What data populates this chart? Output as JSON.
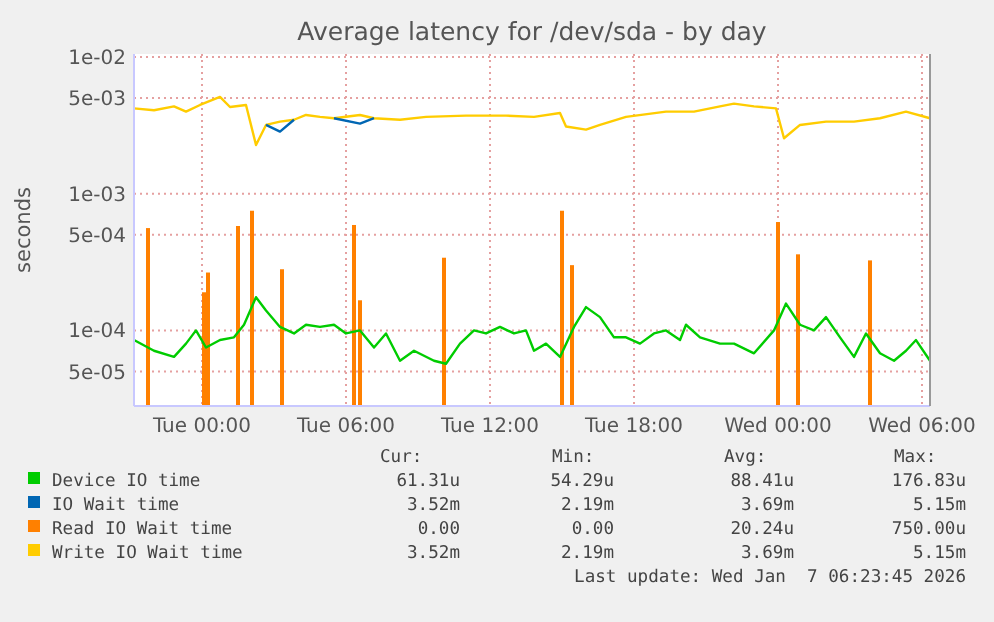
{
  "chart_data": {
    "type": "line",
    "title": "Average latency for /dev/sda - by day",
    "ylabel": "seconds",
    "log": "y",
    "grid": true,
    "legend": "bottom",
    "xlim": [
      "2026-01-05T21:10",
      "2026-01-07T06:20"
    ],
    "xticks": [
      {
        "value": "2026-01-06T00:00",
        "label": "Tue 00:00"
      },
      {
        "value": "2026-01-06T06:00",
        "label": "Tue 06:00"
      },
      {
        "value": "2026-01-06T12:00",
        "label": "Tue 12:00"
      },
      {
        "value": "2026-01-06T18:00",
        "label": "Tue 18:00"
      },
      {
        "value": "2026-01-07T00:00",
        "label": "Wed 00:00"
      },
      {
        "value": "2026-01-07T06:00",
        "label": "Wed 06:00"
      }
    ],
    "ylim": [
      2.8e-05,
      0.0105
    ],
    "yticks": [
      {
        "value": 5e-05,
        "label": "5e-05"
      },
      {
        "value": 0.0001,
        "label": "1e-04"
      },
      {
        "value": 0.0005,
        "label": "5e-04"
      },
      {
        "value": 0.001,
        "label": "1e-03"
      },
      {
        "value": 0.005,
        "label": "5e-03"
      },
      {
        "value": 0.01,
        "label": "1e-02"
      }
    ],
    "series": [
      {
        "name": "Device IO time",
        "color": "#00cc00",
        "x": [
          "2026-01-05T21:10",
          "2026-01-05T22:00",
          "2026-01-05T22:50",
          "2026-01-05T23:20",
          "2026-01-05T23:45",
          "2026-01-06T00:10",
          "2026-01-06T00:45",
          "2026-01-06T01:20",
          "2026-01-06T01:45",
          "2026-01-06T02:15",
          "2026-01-06T02:40",
          "2026-01-06T03:15",
          "2026-01-06T03:50",
          "2026-01-06T04:20",
          "2026-01-06T04:55",
          "2026-01-06T05:30",
          "2026-01-06T06:00",
          "2026-01-06T06:35",
          "2026-01-06T07:10",
          "2026-01-06T07:40",
          "2026-01-06T08:15",
          "2026-01-06T08:50",
          "2026-01-06T09:40",
          "2026-01-06T10:10",
          "2026-01-06T10:45",
          "2026-01-06T11:20",
          "2026-01-06T11:50",
          "2026-01-06T12:25",
          "2026-01-06T13:00",
          "2026-01-06T13:30",
          "2026-01-06T13:50",
          "2026-01-06T14:20",
          "2026-01-06T14:55",
          "2026-01-06T15:30",
          "2026-01-06T16:00",
          "2026-01-06T16:35",
          "2026-01-06T17:10",
          "2026-01-06T17:40",
          "2026-01-06T18:15",
          "2026-01-06T18:50",
          "2026-01-06T19:20",
          "2026-01-06T19:55",
          "2026-01-06T20:10",
          "2026-01-06T20:45",
          "2026-01-06T21:35",
          "2026-01-06T22:10",
          "2026-01-06T23:00",
          "2026-01-06T23:50",
          "2026-01-07T00:20",
          "2026-01-07T00:55",
          "2026-01-07T01:30",
          "2026-01-07T02:00",
          "2026-01-07T02:35",
          "2026-01-07T03:10",
          "2026-01-07T03:40",
          "2026-01-07T04:15",
          "2026-01-07T04:50",
          "2026-01-07T05:20",
          "2026-01-07T05:45",
          "2026-01-07T06:20"
        ],
        "values": [
          8.5e-05,
          7.1e-05,
          6.4e-05,
          8e-05,
          0.0001,
          7.5e-05,
          8.5e-05,
          8.9e-05,
          0.00011,
          0.000175,
          0.00014,
          0.000106,
          9.5e-05,
          0.00011,
          0.000106,
          0.00011,
          9.5e-05,
          0.0001,
          7.5e-05,
          9.5e-05,
          6e-05,
          7.1e-05,
          6e-05,
          5.7e-05,
          8e-05,
          0.0001,
          9.5e-05,
          0.000106,
          9.5e-05,
          0.0001,
          7.1e-05,
          8e-05,
          6.4e-05,
          0.000106,
          0.000148,
          0.000125,
          8.9e-05,
          8.9e-05,
          8e-05,
          9.5e-05,
          0.0001,
          8.5e-05,
          0.00011,
          8.9e-05,
          8e-05,
          8e-05,
          6.8e-05,
          0.0001,
          0.000157,
          0.00011,
          0.0001,
          0.000125,
          8.9e-05,
          6.4e-05,
          9.5e-05,
          6.8e-05,
          6e-05,
          7.1e-05,
          8.5e-05,
          6e-05
        ]
      },
      {
        "name": "IO Wait time",
        "color": "#0066b3",
        "x": [
          "2026-01-06T02:40",
          "2026-01-06T03:15",
          "2026-01-06T03:50",
          "2026-01-06T04:20",
          "2026-01-06T05:30",
          "2026-01-06T06:35",
          "2026-01-06T07:10"
        ],
        "values": [
          0.00318,
          0.00284,
          0.00347,
          null,
          0.00356,
          0.00325,
          0.00356
        ]
      },
      {
        "name": "Read IO Wait time",
        "color": "#ff8000",
        "type": "bar",
        "x": [
          "2026-01-05T21:45",
          "2026-01-06T00:05",
          "2026-01-06T00:15",
          "2026-01-06T01:30",
          "2026-01-06T02:05",
          "2026-01-06T03:20",
          "2026-01-06T06:20",
          "2026-01-06T06:35",
          "2026-01-06T10:05",
          "2026-01-06T15:00",
          "2026-01-06T15:25",
          "2026-01-07T00:00",
          "2026-01-07T00:50",
          "2026-01-07T03:50"
        ],
        "values": [
          0.00056,
          0.00019,
          0.000265,
          0.00058,
          0.00075,
          0.00028,
          0.00059,
          0.000166,
          0.00034,
          0.00075,
          0.0003,
          0.00062,
          0.00036,
          0.000325
        ]
      },
      {
        "name": "Write IO Wait time",
        "color": "#ffcc00",
        "x": [
          "2026-01-05T21:10",
          "2026-01-05T22:00",
          "2026-01-05T22:50",
          "2026-01-05T23:20",
          "2026-01-05T23:55",
          "2026-01-06T00:45",
          "2026-01-06T01:10",
          "2026-01-06T01:50",
          "2026-01-06T02:15",
          "2026-01-06T02:40",
          "2026-01-06T03:15",
          "2026-01-06T03:50",
          "2026-01-06T04:20",
          "2026-01-06T04:55",
          "2026-01-06T05:30",
          "2026-01-06T06:35",
          "2026-01-06T07:10",
          "2026-01-06T08:15",
          "2026-01-06T09:20",
          "2026-01-06T11:00",
          "2026-01-06T12:40",
          "2026-01-06T13:50",
          "2026-01-06T14:55",
          "2026-01-06T15:10",
          "2026-01-06T16:00",
          "2026-01-06T16:35",
          "2026-01-06T17:40",
          "2026-01-06T19:20",
          "2026-01-06T20:30",
          "2026-01-06T21:35",
          "2026-01-06T22:10",
          "2026-01-06T23:00",
          "2026-01-06T23:55",
          "2026-01-07T00:15",
          "2026-01-07T00:55",
          "2026-01-07T02:00",
          "2026-01-07T03:10",
          "2026-01-07T04:15",
          "2026-01-07T05:20",
          "2026-01-07T06:20"
        ],
        "values": [
          0.0042,
          0.00407,
          0.00435,
          0.00398,
          0.00445,
          0.0051,
          0.0043,
          0.00445,
          0.00227,
          0.00318,
          0.00336,
          0.00347,
          0.00376,
          0.00364,
          0.00356,
          0.00376,
          0.00356,
          0.00347,
          0.00364,
          0.00372,
          0.00372,
          0.00364,
          0.00389,
          0.0031,
          0.00294,
          0.00318,
          0.00364,
          0.00398,
          0.00398,
          0.00435,
          0.00455,
          0.00435,
          0.0042,
          0.00254,
          0.00318,
          0.00336,
          0.00336,
          0.00356,
          0.00398,
          0.00356
        ]
      }
    ],
    "annotations": [
      "Cur:",
      "Min:",
      "Avg:",
      "Max:",
      "61.31u",
      "54.29u",
      "88.41u",
      "176.83u",
      "3.52m",
      "2.19m",
      "3.69m",
      "5.15m",
      "0.00",
      "0.00",
      "20.24u",
      "750.00u",
      "3.52m",
      "2.19m",
      "3.69m",
      "5.15m",
      "Last update: Wed Jan  7 06:23:45 2026"
    ]
  }
}
